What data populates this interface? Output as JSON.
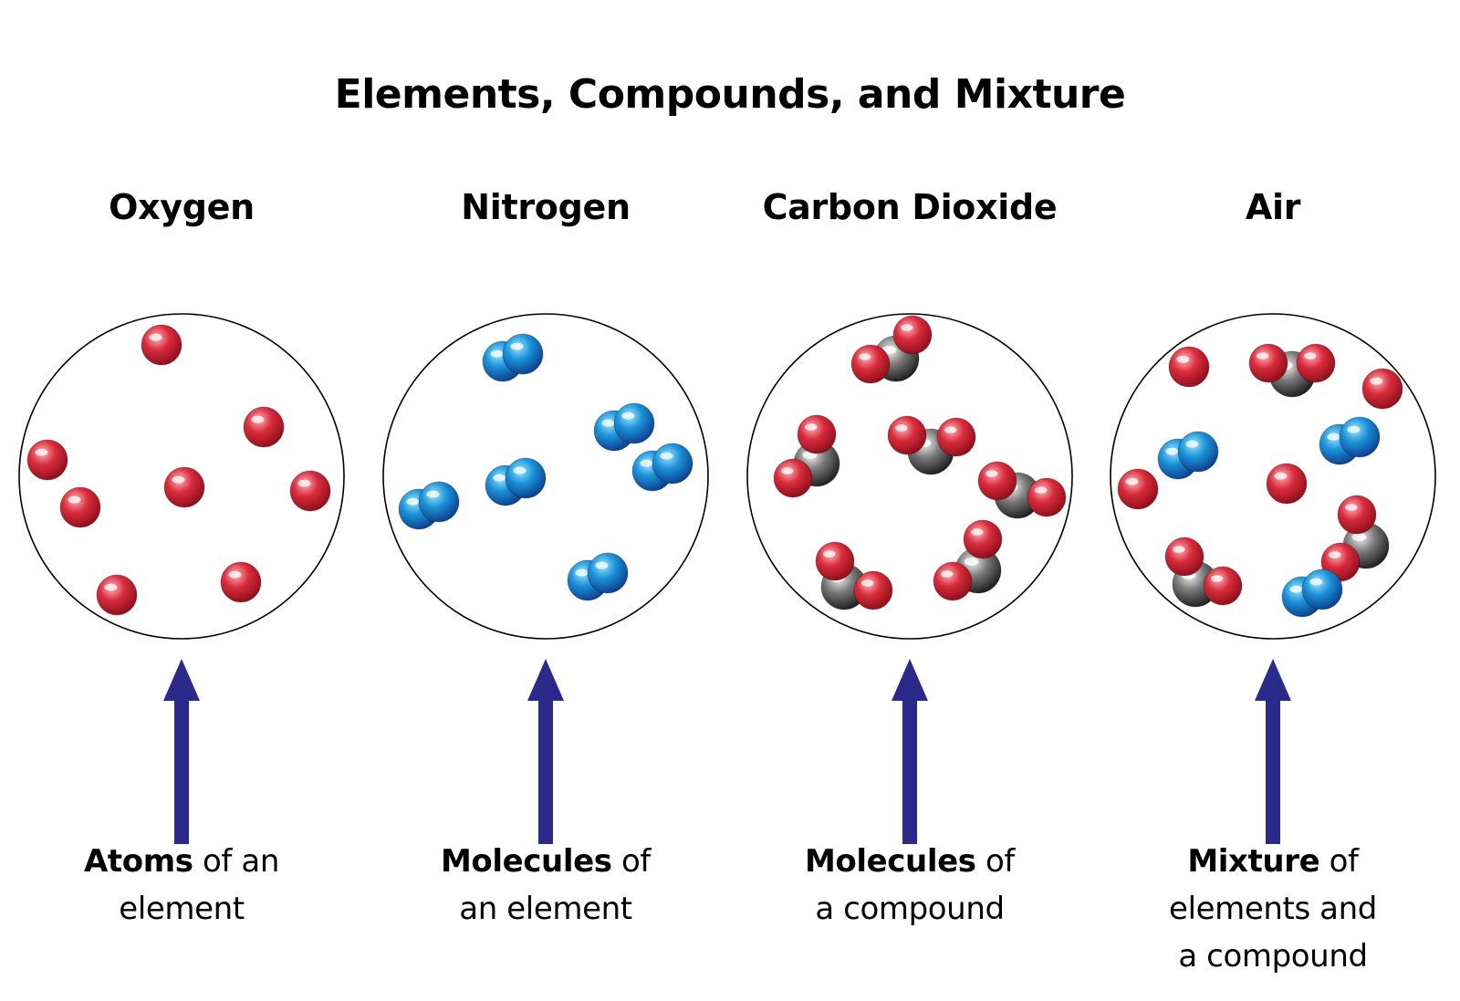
{
  "title": "Elements, Compounds, and Mixture",
  "colors": {
    "oxygen": "#d92c3c",
    "nitrogen": "#1c93d9",
    "carbon": "#7a7a7a",
    "arrow": "#2b2a8a"
  },
  "panels": [
    {
      "heading": "Oxygen",
      "caption": {
        "bold": "Atoms",
        "rest": " of an",
        "line2": "element",
        "line3": ""
      }
    },
    {
      "heading": "Nitrogen",
      "caption": {
        "bold": "Molecules",
        "rest": " of",
        "line2": "an element",
        "line3": ""
      }
    },
    {
      "heading": "Carbon Dioxide",
      "caption": {
        "bold": "Molecules",
        "rest": " of",
        "line2": "a compound",
        "line3": ""
      }
    },
    {
      "heading": "Air",
      "caption": {
        "bold": "Mixture",
        "rest": " of",
        "line2": "elements and",
        "line3": "a compound"
      }
    }
  ]
}
